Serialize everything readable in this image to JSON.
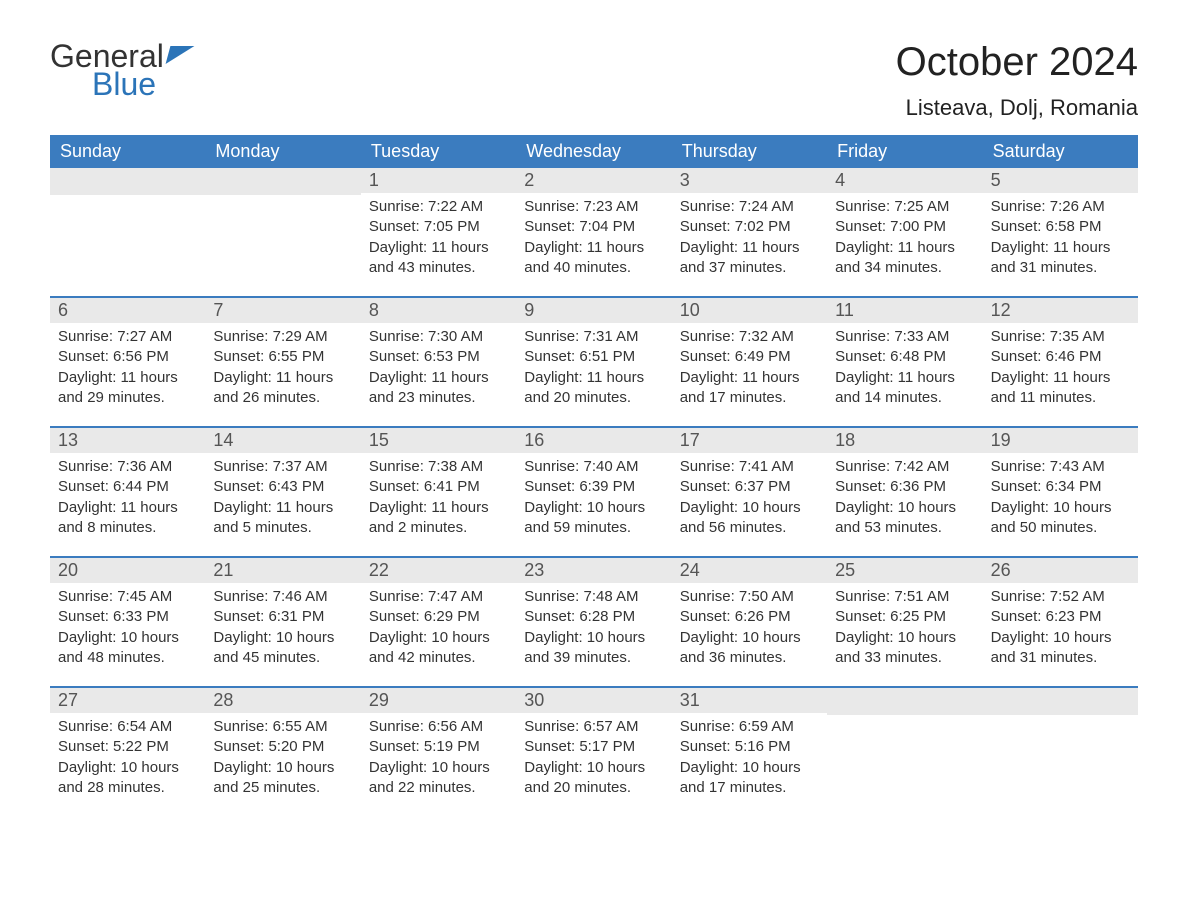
{
  "logo": {
    "word1": "General",
    "word2": "Blue"
  },
  "header": {
    "month_title": "October 2024",
    "location": "Listeava, Dolj, Romania"
  },
  "colors": {
    "header_bg": "#3b7cbf",
    "header_text": "#ffffff",
    "daynum_bg": "#e9e9e9",
    "daynum_text": "#555555",
    "body_text": "#333333",
    "row_border": "#3b7cbf",
    "logo_blue": "#2b74b8",
    "page_bg": "#ffffff"
  },
  "calendar": {
    "weekdays": [
      "Sunday",
      "Monday",
      "Tuesday",
      "Wednesday",
      "Thursday",
      "Friday",
      "Saturday"
    ],
    "label_prefixes": {
      "sunrise": "Sunrise: ",
      "sunset": "Sunset: ",
      "daylight": "Daylight: "
    },
    "weeks": [
      [
        null,
        null,
        {
          "num": "1",
          "sunrise": "7:22 AM",
          "sunset": "7:05 PM",
          "daylight": "11 hours and 43 minutes."
        },
        {
          "num": "2",
          "sunrise": "7:23 AM",
          "sunset": "7:04 PM",
          "daylight": "11 hours and 40 minutes."
        },
        {
          "num": "3",
          "sunrise": "7:24 AM",
          "sunset": "7:02 PM",
          "daylight": "11 hours and 37 minutes."
        },
        {
          "num": "4",
          "sunrise": "7:25 AM",
          "sunset": "7:00 PM",
          "daylight": "11 hours and 34 minutes."
        },
        {
          "num": "5",
          "sunrise": "7:26 AM",
          "sunset": "6:58 PM",
          "daylight": "11 hours and 31 minutes."
        }
      ],
      [
        {
          "num": "6",
          "sunrise": "7:27 AM",
          "sunset": "6:56 PM",
          "daylight": "11 hours and 29 minutes."
        },
        {
          "num": "7",
          "sunrise": "7:29 AM",
          "sunset": "6:55 PM",
          "daylight": "11 hours and 26 minutes."
        },
        {
          "num": "8",
          "sunrise": "7:30 AM",
          "sunset": "6:53 PM",
          "daylight": "11 hours and 23 minutes."
        },
        {
          "num": "9",
          "sunrise": "7:31 AM",
          "sunset": "6:51 PM",
          "daylight": "11 hours and 20 minutes."
        },
        {
          "num": "10",
          "sunrise": "7:32 AM",
          "sunset": "6:49 PM",
          "daylight": "11 hours and 17 minutes."
        },
        {
          "num": "11",
          "sunrise": "7:33 AM",
          "sunset": "6:48 PM",
          "daylight": "11 hours and 14 minutes."
        },
        {
          "num": "12",
          "sunrise": "7:35 AM",
          "sunset": "6:46 PM",
          "daylight": "11 hours and 11 minutes."
        }
      ],
      [
        {
          "num": "13",
          "sunrise": "7:36 AM",
          "sunset": "6:44 PM",
          "daylight": "11 hours and 8 minutes."
        },
        {
          "num": "14",
          "sunrise": "7:37 AM",
          "sunset": "6:43 PM",
          "daylight": "11 hours and 5 minutes."
        },
        {
          "num": "15",
          "sunrise": "7:38 AM",
          "sunset": "6:41 PM",
          "daylight": "11 hours and 2 minutes."
        },
        {
          "num": "16",
          "sunrise": "7:40 AM",
          "sunset": "6:39 PM",
          "daylight": "10 hours and 59 minutes."
        },
        {
          "num": "17",
          "sunrise": "7:41 AM",
          "sunset": "6:37 PM",
          "daylight": "10 hours and 56 minutes."
        },
        {
          "num": "18",
          "sunrise": "7:42 AM",
          "sunset": "6:36 PM",
          "daylight": "10 hours and 53 minutes."
        },
        {
          "num": "19",
          "sunrise": "7:43 AM",
          "sunset": "6:34 PM",
          "daylight": "10 hours and 50 minutes."
        }
      ],
      [
        {
          "num": "20",
          "sunrise": "7:45 AM",
          "sunset": "6:33 PM",
          "daylight": "10 hours and 48 minutes."
        },
        {
          "num": "21",
          "sunrise": "7:46 AM",
          "sunset": "6:31 PM",
          "daylight": "10 hours and 45 minutes."
        },
        {
          "num": "22",
          "sunrise": "7:47 AM",
          "sunset": "6:29 PM",
          "daylight": "10 hours and 42 minutes."
        },
        {
          "num": "23",
          "sunrise": "7:48 AM",
          "sunset": "6:28 PM",
          "daylight": "10 hours and 39 minutes."
        },
        {
          "num": "24",
          "sunrise": "7:50 AM",
          "sunset": "6:26 PM",
          "daylight": "10 hours and 36 minutes."
        },
        {
          "num": "25",
          "sunrise": "7:51 AM",
          "sunset": "6:25 PM",
          "daylight": "10 hours and 33 minutes."
        },
        {
          "num": "26",
          "sunrise": "7:52 AM",
          "sunset": "6:23 PM",
          "daylight": "10 hours and 31 minutes."
        }
      ],
      [
        {
          "num": "27",
          "sunrise": "6:54 AM",
          "sunset": "5:22 PM",
          "daylight": "10 hours and 28 minutes."
        },
        {
          "num": "28",
          "sunrise": "6:55 AM",
          "sunset": "5:20 PM",
          "daylight": "10 hours and 25 minutes."
        },
        {
          "num": "29",
          "sunrise": "6:56 AM",
          "sunset": "5:19 PM",
          "daylight": "10 hours and 22 minutes."
        },
        {
          "num": "30",
          "sunrise": "6:57 AM",
          "sunset": "5:17 PM",
          "daylight": "10 hours and 20 minutes."
        },
        {
          "num": "31",
          "sunrise": "6:59 AM",
          "sunset": "5:16 PM",
          "daylight": "10 hours and 17 minutes."
        },
        null,
        null
      ]
    ]
  }
}
